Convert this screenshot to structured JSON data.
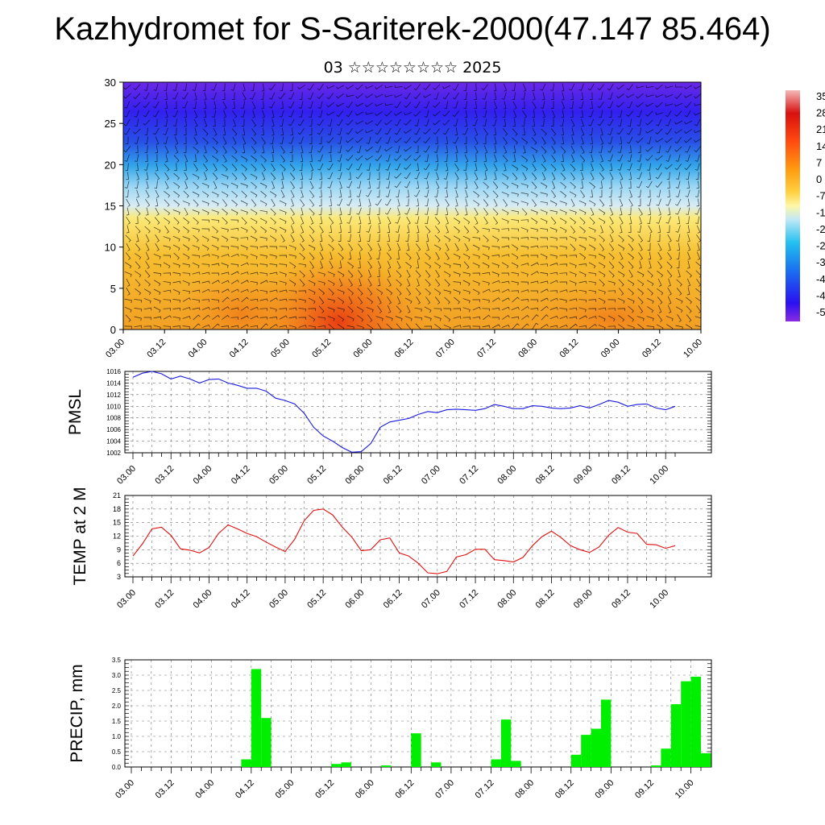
{
  "title": "Kazhydromet for S-Sariterek-2000(47.147 85.464)",
  "subtitle": "03 ☆☆☆☆☆☆☆☆ 2025",
  "colors": {
    "pmsl_line": "#1a1adc",
    "temp_line": "#e01010",
    "precip_bar": "#00ee00",
    "grid": "#000000"
  },
  "time_ticks": [
    "03.00",
    "03.12",
    "04.00",
    "04.12",
    "05.00",
    "05.12",
    "06.00",
    "06.12",
    "07.00",
    "07.12",
    "08.00",
    "08.12",
    "09.00",
    "09.12",
    "10.00"
  ],
  "chart_data": [
    {
      "type": "heatmap",
      "name": "wind-temperature cross section",
      "title": "",
      "ylabel": "",
      "ylim": [
        0,
        30
      ],
      "y_ticks": [
        "0",
        "5",
        "10",
        "15",
        "20",
        "25",
        "30"
      ],
      "colorbar_labels": [
        "35",
        "28",
        "21",
        "14",
        "7",
        "0",
        "-7",
        "-1",
        "-2",
        "-2",
        "-3",
        "-4",
        "-4",
        "-5"
      ],
      "note_visual": "temperature shading from warm (low levels) to cold (upper levels) with wind barbs overlaid"
    },
    {
      "type": "line",
      "ylabel": "PMSL",
      "ylim": [
        1002,
        1016
      ],
      "y_ticks": [
        "1002",
        "1004",
        "1006",
        "1008",
        "1010",
        "1012",
        "1014",
        "1016"
      ],
      "x_step_hours": 3,
      "series": [
        {
          "values": [
            1015.0,
            1015.7,
            1016.0,
            1015.6,
            1014.7,
            1015.2,
            1014.7,
            1014.0,
            1014.6,
            1014.7,
            1014.0,
            1013.6,
            1013.1,
            1013.1,
            1012.6,
            1011.4,
            1011.0,
            1010.4,
            1008.8,
            1006.4,
            1004.9,
            1004.0,
            1002.9,
            1002.1,
            1002.2,
            1003.6,
            1006.4,
            1007.3,
            1007.6,
            1007.9,
            1008.6,
            1009.1,
            1008.9,
            1009.4,
            1009.5,
            1009.4,
            1009.3,
            1009.6,
            1010.3,
            1010.0,
            1009.6,
            1009.6,
            1010.1,
            1010.0,
            1009.7,
            1009.6,
            1009.7,
            1010.1,
            1009.7,
            1010.3,
            1011.0,
            1010.7,
            1010.0,
            1010.3,
            1010.4,
            1009.7,
            1009.4,
            1010.0
          ]
        }
      ]
    },
    {
      "type": "line",
      "ylabel": "TEMP at 2 M",
      "ylim": [
        3,
        21
      ],
      "y_ticks": [
        "3",
        "6",
        "9",
        "12",
        "15",
        "18",
        "21"
      ],
      "x_step_hours": 3,
      "series": [
        {
          "values": [
            7.6,
            10.3,
            13.6,
            14.0,
            12.2,
            9.2,
            8.9,
            8.3,
            9.5,
            12.6,
            14.5,
            13.6,
            12.6,
            11.9,
            10.7,
            9.6,
            8.6,
            11.3,
            15.4,
            17.7,
            18.0,
            16.7,
            14.0,
            11.8,
            8.8,
            9.0,
            11.2,
            11.6,
            8.3,
            7.6,
            6.0,
            3.9,
            3.7,
            4.2,
            7.4,
            7.9,
            9.1,
            9.1,
            6.8,
            6.6,
            6.3,
            7.3,
            9.9,
            11.9,
            13.1,
            11.7,
            9.9,
            9.0,
            8.4,
            9.6,
            12.2,
            13.9,
            12.9,
            12.6,
            10.2,
            10.1,
            9.3,
            9.9
          ]
        }
      ]
    },
    {
      "type": "bar",
      "ylabel": "PRECIP, mm",
      "ylim": [
        0,
        3.5
      ],
      "y_ticks": [
        "0.0",
        "0.5",
        "1.0",
        "1.5",
        "2.0",
        "2.5",
        "3.0",
        "3.5"
      ],
      "x_step_hours": 3,
      "values": [
        0,
        0,
        0,
        0,
        0,
        0,
        0,
        0,
        0,
        0,
        0,
        0.25,
        3.2,
        1.6,
        0,
        0,
        0,
        0,
        0,
        0,
        0.1,
        0.15,
        0,
        0,
        0,
        0.05,
        0,
        0,
        1.1,
        0,
        0.15,
        0,
        0,
        0,
        0,
        0,
        0.25,
        1.55,
        0.2,
        0,
        0,
        0,
        0,
        0,
        0.4,
        1.05,
        1.25,
        2.2,
        0,
        0,
        0,
        0,
        0.05,
        0.6,
        2.05,
        2.8,
        2.95,
        0.45
      ]
    }
  ]
}
